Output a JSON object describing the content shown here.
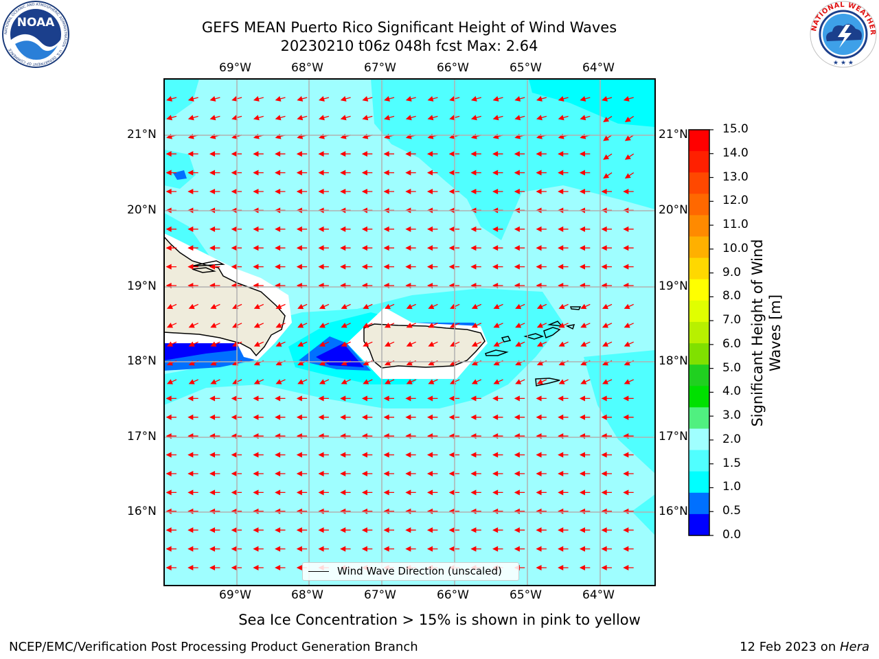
{
  "title": {
    "line1": "GEFS MEAN Puerto Rico Significant Height of Wind Waves",
    "line2": "20230210 t06z 048h fcst   Max: 2.64"
  },
  "map": {
    "lon_labels": [
      "69°W",
      "68°W",
      "67°W",
      "66°W",
      "65°W",
      "64°W"
    ],
    "lat_labels": [
      "21°N",
      "20°N",
      "19°N",
      "18°N",
      "17°N",
      "16°N"
    ],
    "legend": "Wind Wave Direction (unscaled)",
    "colors": {
      "arrow": "#ff0000",
      "land": "#efecdc",
      "ocean_main": "#9ffeff",
      "frame": "#000000"
    }
  },
  "colorbar": {
    "label": "Significant Height of Wind Waves [m]",
    "ticks": [
      "15.0",
      "14.0",
      "13.0",
      "12.0",
      "11.0",
      "10.0",
      "9.0",
      "8.0",
      "7.0",
      "6.0",
      "5.0",
      "4.0",
      "3.0",
      "2.0",
      "1.5",
      "1.0",
      "0.5",
      "0.0"
    ],
    "colors_top_to_bottom": [
      "#ff0000",
      "#ff2000",
      "#ff4800",
      "#ff6800",
      "#ff8a00",
      "#ffb000",
      "#ffd800",
      "#ffff00",
      "#e0ff00",
      "#b8f000",
      "#80e000",
      "#20d020",
      "#00e000",
      "#50f080",
      "#a0ffff",
      "#50ffff",
      "#00ffff",
      "#0070ff",
      "#0000ff"
    ]
  },
  "caption": "Sea Ice Concentration > 15% is shown in pink to yellow",
  "footer": {
    "left": "NCEP/EMC/Verification Post Processing Product Generation Branch",
    "right_prefix": "12 Feb 2023 on ",
    "right_host": "Hera"
  },
  "logos": {
    "noaa": "NOAA",
    "noaa_ring": "NATIONAL OCEANIC AND ATMOSPHERIC ADMINISTRATION · U.S. DEPARTMENT OF COMMERCE",
    "nws_ring": "NATIONAL WEATHER SERVICE"
  }
}
